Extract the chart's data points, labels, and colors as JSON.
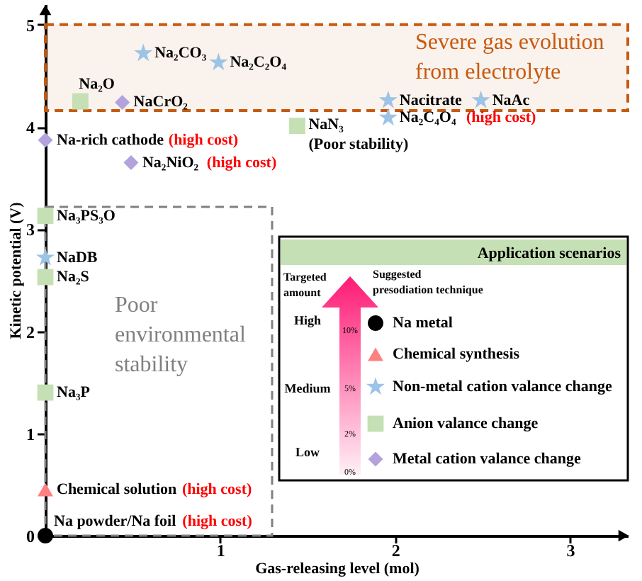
{
  "chart_data": {
    "type": "scatter",
    "xlabel": "Gas-releasing level (mol)",
    "ylabel": "Kinetic potential (V)",
    "xlim": [
      0,
      3.33
    ],
    "ylim": [
      0,
      5.2
    ],
    "xticks": [
      1,
      2,
      3
    ],
    "yticks": [
      0,
      1,
      2,
      3,
      4,
      5
    ],
    "legend": "bottom right",
    "legend_title": "Application scenarios",
    "series": [
      {
        "name": "Na metal",
        "color": "#000000",
        "marker": "circle",
        "x": [
          0
        ],
        "values": [
          0
        ]
      },
      {
        "name": "Chemical synthesis",
        "color": "#ff8080",
        "marker": "triangle",
        "x": [
          0
        ],
        "values": [
          0.45
        ]
      },
      {
        "name": "Non-metal cation valance change",
        "color": "#9dc3e6",
        "marker": "star",
        "x": [
          0,
          0.56,
          0.99,
          1.96,
          2.49,
          1.96
        ],
        "values": [
          2.72,
          4.72,
          4.63,
          4.26,
          4.26,
          4.09
        ]
      },
      {
        "name": "Anion valance change",
        "color": "#c5e0b4",
        "marker": "square",
        "x": [
          0,
          0,
          0,
          0.2,
          1.44
        ],
        "values": [
          1.4,
          2.53,
          3.13,
          4.25,
          4.01
        ]
      },
      {
        "name": "Metal cation valance change",
        "color": "#b4a2dc",
        "marker": "diamond",
        "x": [
          0,
          0.49,
          0.44
        ],
        "values": [
          3.87,
          3.65,
          4.24
        ]
      }
    ],
    "bands": [
      {
        "axis": "y",
        "from": 4.16,
        "to": 5,
        "label": "Severe gas evolution\nfrom electrolyte",
        "color": "#c55a11"
      }
    ],
    "annotations": [
      "Targeted\namount",
      "Suggested\npresodiation technique",
      "High",
      "Medium",
      "Low",
      "10%",
      "5%",
      "2%",
      "0%",
      "Poor\nenvironmental\nstability",
      {
        "text": "Na₂CO₃",
        "x": 0.56,
        "y": 4.72
      },
      {
        "text": "Na₂C₂O₄",
        "x": 0.99,
        "y": 4.63
      },
      {
        "text": "Na₂O",
        "x": 0.2,
        "y": 4.25
      },
      {
        "text": "NaCrO₂",
        "x": 0.44,
        "y": 4.24
      },
      {
        "text": "Na-rich cathode",
        "x": 0,
        "y": 3.87
      },
      "(high cost)",
      {
        "text": "Na₂NiO₂",
        "x": 0.49,
        "y": 3.65
      },
      "(high cost)",
      {
        "text": "NaN₃\n(Poor stability)",
        "x": 1.44,
        "y": 4.01
      },
      {
        "text": "Nacitrate",
        "x": 1.96,
        "y": 4.26
      },
      {
        "text": "NaAc",
        "x": 2.49,
        "y": 4.26
      },
      {
        "text": "Na₂C₄O₄",
        "x": 1.96,
        "y": 4.09
      },
      "(high cost)",
      {
        "text": "Na₃PS₃O",
        "x": 0,
        "y": 3.13
      },
      {
        "text": "NaDB",
        "x": 0,
        "y": 2.72
      },
      {
        "text": "Na₂S",
        "x": 0,
        "y": 2.53
      },
      {
        "text": "Na₃P",
        "x": 0,
        "y": 1.4
      },
      {
        "text": "Chemical solution",
        "x": 0,
        "y": 0.45
      },
      "(high cost)",
      {
        "text": "Na powder/Na foil",
        "x": 0,
        "y": 0
      },
      "(high cost)"
    ]
  }
}
